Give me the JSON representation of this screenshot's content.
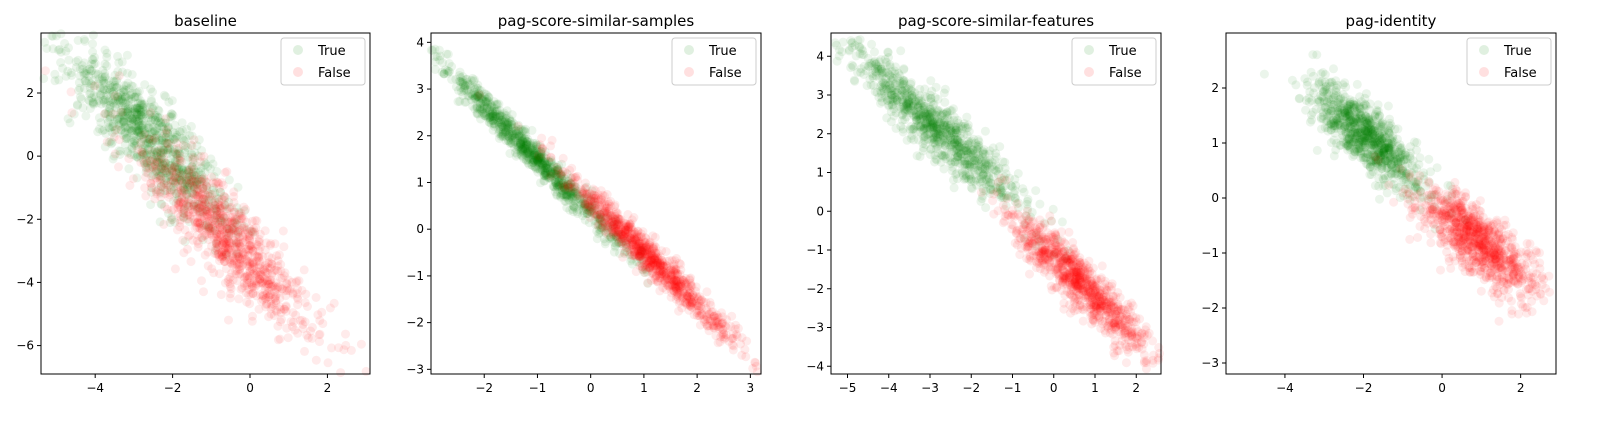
{
  "colors": {
    "true_series": "#008000",
    "false_series": "#ff0000",
    "point_alpha": 0.08
  },
  "chart_data": [
    {
      "type": "scatter",
      "title": "baseline",
      "xlabel": "",
      "ylabel": "",
      "xlim": [
        -5.4,
        3.1
      ],
      "ylim": [
        -6.9,
        3.9
      ],
      "xticks": [
        -4,
        -2,
        0,
        2
      ],
      "yticks": [
        -6,
        -4,
        -2,
        0,
        2
      ],
      "grid": false,
      "legend": "upper right",
      "series": [
        {
          "name": "True",
          "color": "#008000",
          "cloud": {
            "center": [
              -2.6,
              0.6
            ],
            "spread": [
              1.05,
              0.7
            ],
            "slope": -1.2,
            "count": 900
          }
        },
        {
          "name": "False",
          "color": "#ff0000",
          "cloud": {
            "center": [
              -0.6,
              -2.6
            ],
            "spread": [
              1.15,
              0.75
            ],
            "slope": -1.2,
            "count": 900
          }
        }
      ]
    },
    {
      "type": "scatter",
      "title": "pag-score-similar-samples",
      "xlabel": "",
      "ylabel": "",
      "xticks": [
        -2,
        -1,
        0,
        1,
        2,
        3
      ],
      "xlim": [
        -3.0,
        3.2
      ],
      "ylim": [
        -3.1,
        4.2
      ],
      "yticks": [
        -3,
        -2,
        -1,
        0,
        1,
        2,
        3,
        4
      ],
      "grid": false,
      "legend": "upper right",
      "series": [
        {
          "name": "True",
          "color": "#008000",
          "cloud": {
            "center": [
              -1.1,
              1.6
            ],
            "spread": [
              0.85,
              0.16
            ],
            "slope": -1.15,
            "count": 900
          }
        },
        {
          "name": "False",
          "color": "#ff0000",
          "cloud": {
            "center": [
              1.1,
              -0.6
            ],
            "spread": [
              0.85,
              0.18
            ],
            "slope": -1.1,
            "count": 900
          }
        }
      ]
    },
    {
      "type": "scatter",
      "title": "pag-score-similar-features",
      "xlabel": "",
      "ylabel": "",
      "xlim": [
        -5.4,
        2.6
      ],
      "ylim": [
        -4.2,
        4.6
      ],
      "xticks": [
        -5,
        -4,
        -3,
        -2,
        -1,
        0,
        1,
        2
      ],
      "yticks": [
        -4,
        -3,
        -2,
        -1,
        0,
        1,
        2,
        3,
        4
      ],
      "grid": false,
      "legend": "upper right",
      "series": [
        {
          "name": "True",
          "color": "#008000",
          "cloud": {
            "center": [
              -2.9,
              2.2
            ],
            "spread": [
              1.1,
              0.4
            ],
            "slope": -0.95,
            "count": 900
          }
        },
        {
          "name": "False",
          "color": "#ff0000",
          "cloud": {
            "center": [
              0.6,
              -1.8
            ],
            "spread": [
              0.85,
              0.35
            ],
            "slope": -1.0,
            "count": 900
          }
        }
      ]
    },
    {
      "type": "scatter",
      "title": "pag-identity",
      "xlabel": "",
      "ylabel": "",
      "xlim": [
        -5.5,
        2.9
      ],
      "ylim": [
        -3.2,
        3.0
      ],
      "xticks": [
        -4,
        -2,
        0,
        2
      ],
      "yticks": [
        -3,
        -2,
        -1,
        0,
        1,
        2
      ],
      "grid": false,
      "legend": "upper right",
      "series": [
        {
          "name": "True",
          "color": "#008000",
          "cloud": {
            "center": [
              -1.9,
              1.1
            ],
            "spread": [
              0.7,
              0.3
            ],
            "slope": -0.55,
            "count": 900
          }
        },
        {
          "name": "False",
          "color": "#ff0000",
          "cloud": {
            "center": [
              0.9,
              -0.8
            ],
            "spread": [
              0.75,
              0.3
            ],
            "slope": -0.5,
            "count": 900
          }
        }
      ]
    }
  ]
}
